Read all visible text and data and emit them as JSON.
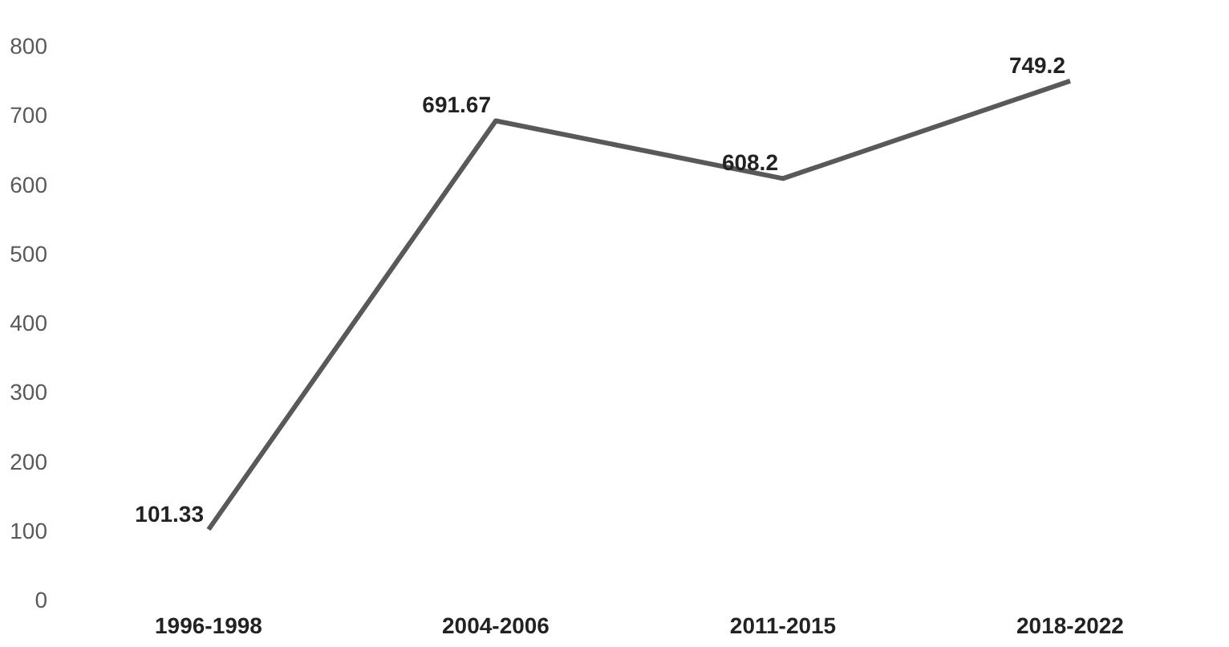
{
  "chart_data": {
    "type": "line",
    "categories": [
      "1996-1998",
      "2004-2006",
      "2011-2015",
      "2018-2022"
    ],
    "series": [
      {
        "color": "#595959",
        "values": [
          101.33,
          691.67,
          608.2,
          749.2
        ]
      }
    ],
    "ylim": [
      0,
      800
    ],
    "yticks": [
      0,
      100,
      200,
      300,
      400,
      500,
      600,
      700,
      800
    ],
    "grid": false,
    "marker": "none",
    "line_style": "solid",
    "data_labels": true
  }
}
